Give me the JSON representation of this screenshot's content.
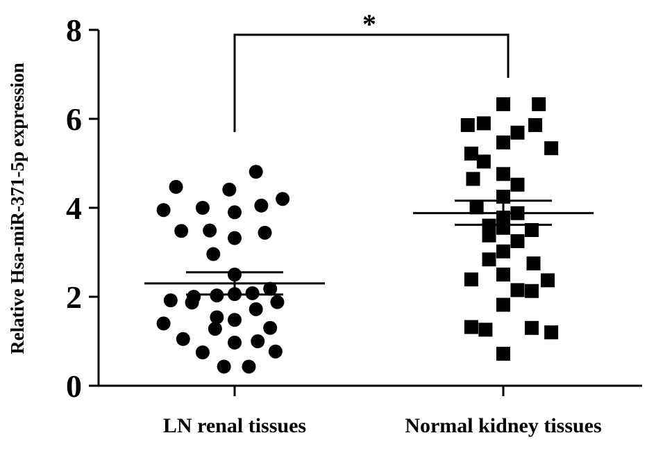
{
  "chart_data": {
    "type": "scatter",
    "ylabel": "Relative Hsa-miR-371-5p expression",
    "xlabel": "",
    "ylim": [
      0,
      8
    ],
    "yticks": [
      "0",
      "2",
      "4",
      "6",
      "8"
    ],
    "categories": [
      "LN renal tissues",
      "Normal kidney tissues"
    ],
    "significance": "*",
    "series": [
      {
        "marker": "circle",
        "mean": 2.3,
        "sem": [
          2.05,
          2.55
        ],
        "points": [
          {
            "pos": -0.33,
            "y": 4.47
          },
          {
            "pos": -0.03,
            "y": 4.41
          },
          {
            "pos": 0.12,
            "y": 4.81
          },
          {
            "pos": 0.27,
            "y": 4.2
          },
          {
            "pos": -0.4,
            "y": 3.95
          },
          {
            "pos": -0.18,
            "y": 4.0
          },
          {
            "pos": 0.0,
            "y": 3.9
          },
          {
            "pos": 0.15,
            "y": 4.05
          },
          {
            "pos": -0.3,
            "y": 3.48
          },
          {
            "pos": -0.14,
            "y": 3.49
          },
          {
            "pos": 0.0,
            "y": 3.32
          },
          {
            "pos": 0.17,
            "y": 3.44
          },
          {
            "pos": -0.12,
            "y": 2.96
          },
          {
            "pos": 0.0,
            "y": 2.5
          },
          {
            "pos": -0.23,
            "y": 2.0
          },
          {
            "pos": -0.1,
            "y": 2.03
          },
          {
            "pos": 0.0,
            "y": 2.06
          },
          {
            "pos": 0.1,
            "y": 2.08
          },
          {
            "pos": 0.2,
            "y": 2.18
          },
          {
            "pos": -0.36,
            "y": 1.92
          },
          {
            "pos": -0.24,
            "y": 1.87
          },
          {
            "pos": 0.12,
            "y": 1.72
          },
          {
            "pos": 0.24,
            "y": 1.88
          },
          {
            "pos": -0.1,
            "y": 1.54
          },
          {
            "pos": 0.0,
            "y": 1.48
          },
          {
            "pos": -0.4,
            "y": 1.4
          },
          {
            "pos": -0.11,
            "y": 1.28
          },
          {
            "pos": 0.2,
            "y": 1.3
          },
          {
            "pos": -0.29,
            "y": 1.05
          },
          {
            "pos": 0.0,
            "y": 0.97
          },
          {
            "pos": 0.13,
            "y": 1.0
          },
          {
            "pos": -0.18,
            "y": 0.75
          },
          {
            "pos": 0.23,
            "y": 0.77
          },
          {
            "pos": -0.06,
            "y": 0.43
          },
          {
            "pos": 0.08,
            "y": 0.43
          }
        ]
      },
      {
        "marker": "square",
        "mean": 3.88,
        "sem": [
          3.62,
          4.16
        ],
        "points": [
          {
            "pos": 0.0,
            "y": 6.33
          },
          {
            "pos": 0.2,
            "y": 6.33
          },
          {
            "pos": -0.2,
            "y": 5.86
          },
          {
            "pos": -0.11,
            "y": 5.9
          },
          {
            "pos": 0.08,
            "y": 5.69
          },
          {
            "pos": 0.18,
            "y": 5.86
          },
          {
            "pos": 0.0,
            "y": 5.47
          },
          {
            "pos": 0.27,
            "y": 5.34
          },
          {
            "pos": -0.18,
            "y": 5.22
          },
          {
            "pos": -0.11,
            "y": 5.04
          },
          {
            "pos": 0.0,
            "y": 4.76
          },
          {
            "pos": -0.17,
            "y": 4.65
          },
          {
            "pos": 0.08,
            "y": 4.52
          },
          {
            "pos": 0.0,
            "y": 4.25
          },
          {
            "pos": -0.15,
            "y": 4.01
          },
          {
            "pos": 0.08,
            "y": 3.88
          },
          {
            "pos": 0.0,
            "y": 3.78
          },
          {
            "pos": -0.08,
            "y": 3.6
          },
          {
            "pos": 0.0,
            "y": 3.55
          },
          {
            "pos": 0.16,
            "y": 3.5
          },
          {
            "pos": -0.08,
            "y": 3.38
          },
          {
            "pos": 0.08,
            "y": 3.25
          },
          {
            "pos": 0.0,
            "y": 3.02
          },
          {
            "pos": -0.08,
            "y": 2.84
          },
          {
            "pos": 0.17,
            "y": 2.75
          },
          {
            "pos": 0.0,
            "y": 2.5
          },
          {
            "pos": -0.18,
            "y": 2.39
          },
          {
            "pos": 0.25,
            "y": 2.37
          },
          {
            "pos": 0.08,
            "y": 2.15
          },
          {
            "pos": 0.16,
            "y": 2.13
          },
          {
            "pos": 0.0,
            "y": 1.82
          },
          {
            "pos": -0.18,
            "y": 1.32
          },
          {
            "pos": -0.1,
            "y": 1.26
          },
          {
            "pos": 0.16,
            "y": 1.3
          },
          {
            "pos": 0.27,
            "y": 1.2
          },
          {
            "pos": 0.0,
            "y": 0.72
          }
        ]
      }
    ]
  }
}
